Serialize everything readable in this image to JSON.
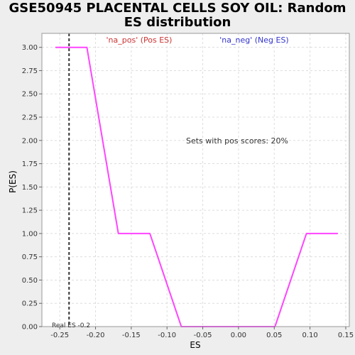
{
  "chart_data": {
    "type": "line",
    "title": "GSE50945 PLACENTAL CELLS SOY OIL: Random ES distribution",
    "xlabel": "ES",
    "ylabel": "P(ES)",
    "xlim": [
      -0.275,
      0.155
    ],
    "ylim": [
      0,
      3.15
    ],
    "x_ticks": [
      "-0.25",
      "-0.20",
      "-0.15",
      "-0.10",
      "-0.05",
      "0.00",
      "0.05",
      "0.10",
      "0.15"
    ],
    "x_tick_values": [
      -0.25,
      -0.2,
      -0.15,
      -0.1,
      -0.05,
      0.0,
      0.05,
      0.1,
      0.15
    ],
    "y_ticks": [
      "0.00",
      "0.25",
      "0.50",
      "0.75",
      "1.00",
      "1.25",
      "1.50",
      "1.75",
      "2.00",
      "2.25",
      "2.50",
      "2.75",
      "3.00"
    ],
    "y_tick_values": [
      0,
      0.25,
      0.5,
      0.75,
      1.0,
      1.25,
      1.5,
      1.75,
      2.0,
      2.25,
      2.5,
      2.75,
      3.0
    ],
    "grid": true,
    "series": [
      {
        "color": "#ff44ff",
        "x": [
          -0.256,
          -0.212,
          -0.168,
          -0.124,
          -0.08,
          -0.036,
          0.007,
          0.051,
          0.095,
          0.139
        ],
        "y": [
          3.0,
          3.0,
          1.0,
          1.0,
          0.0,
          0.0,
          0.0,
          0.0,
          1.0,
          1.0
        ]
      }
    ],
    "reference_line": {
      "x": -0.237,
      "color": "#333333",
      "style": "dashed"
    },
    "legend": [
      {
        "label": "'na_pos' (Pos ES)",
        "color": "#cc3333"
      },
      {
        "label": "'na_neg' (Neg ES)",
        "color": "#3333cc"
      }
    ],
    "annotations": {
      "pos_scores": "Sets with pos scores: 20%",
      "real_es": "Real ES -0.2"
    }
  }
}
